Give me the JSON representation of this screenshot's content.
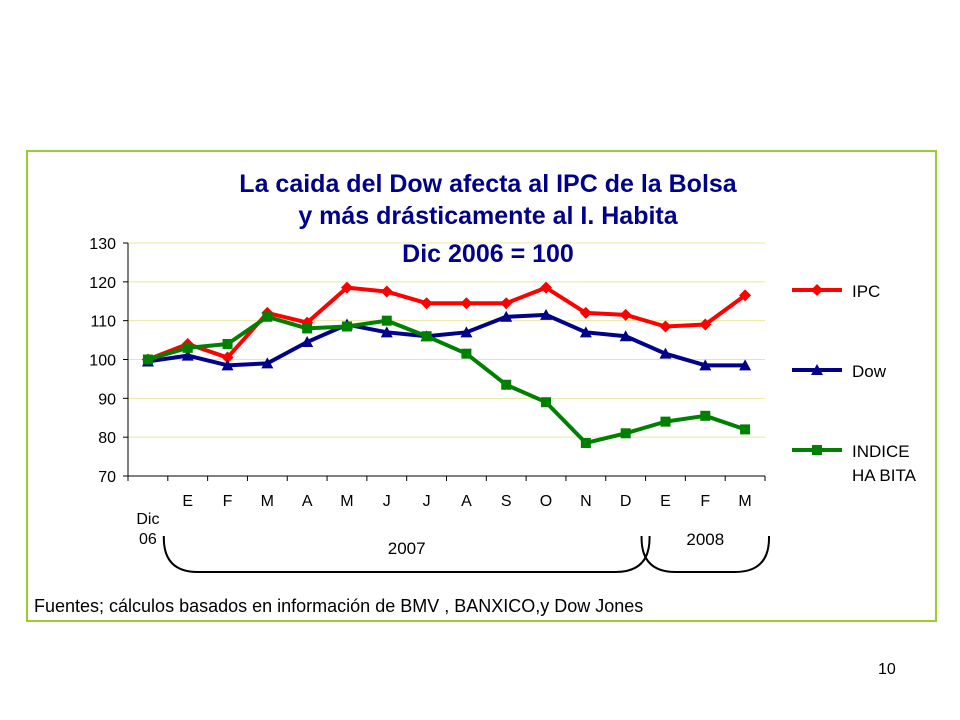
{
  "page_number": "10",
  "chart_data": {
    "type": "line",
    "title_lines": [
      "La caida del Dow afecta al IPC de la Bolsa",
      "y más drásticamente al I. Habita",
      "Dic  2006 = 100"
    ],
    "categories": [
      "Dic 06",
      "E",
      "F",
      "M",
      "A",
      "M",
      "J",
      "J",
      "A",
      "S",
      "O",
      "N",
      "D",
      "E",
      "F",
      "M"
    ],
    "first_category_lines": [
      "Dic",
      "06"
    ],
    "ylim": [
      70,
      130
    ],
    "yticks": [
      70,
      80,
      90,
      100,
      110,
      120,
      130
    ],
    "grid": true,
    "legend_position": "right",
    "series": [
      {
        "name": "IPC",
        "name_lines": [
          "IPC"
        ],
        "color": "#FF0000",
        "marker": "diamond",
        "values": [
          100,
          104,
          100.5,
          112,
          109.5,
          118.5,
          117.5,
          114.5,
          114.5,
          114.5,
          118.5,
          112,
          111.5,
          108.5,
          109,
          116.5
        ]
      },
      {
        "name": "Dow",
        "name_lines": [
          "Dow"
        ],
        "color": "#00008B",
        "marker": "triangle",
        "values": [
          99.5,
          101,
          98.5,
          99,
          104.5,
          109,
          107,
          106,
          107,
          111,
          111.5,
          107,
          106,
          101.5,
          98.5,
          98.5
        ]
      },
      {
        "name": "INDICE HA BITA",
        "name_lines": [
          "INDICE",
          "HA BITA"
        ],
        "color": "#008000",
        "marker": "square",
        "values": [
          100,
          103,
          104,
          111,
          108,
          108.5,
          110,
          106,
          101.5,
          93.5,
          89,
          78.5,
          81,
          84,
          85.5,
          82
        ]
      }
    ],
    "year_brackets": [
      {
        "label": "2007",
        "from": 1,
        "to": 12
      },
      {
        "label": "2008",
        "from": 13,
        "to": 15
      }
    ],
    "source_note": "Fuentes; cálculos basados en información de BMV , BANXICO,y Dow Jones"
  }
}
